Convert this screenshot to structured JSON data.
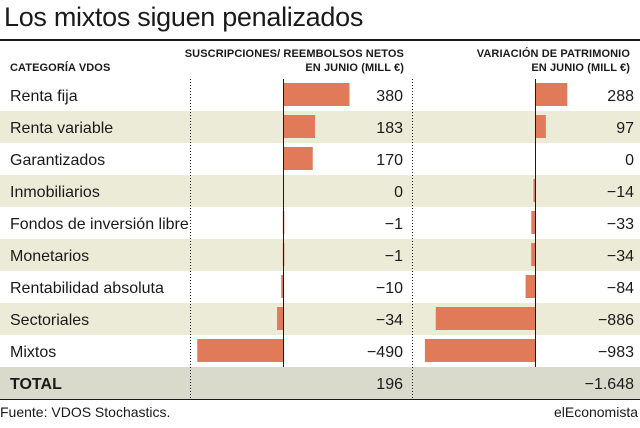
{
  "title": "Los mixtos siguen penalizados",
  "headers": {
    "category": "CATEGORÍA VDOS",
    "flows_line1": "SUSCRIPCIONES/ REEMBOLSOS NETOS",
    "flows_line2": "EN JUNIO (MILL €)",
    "assets_line1": "VARIACIÓN DE PATRIMONIO",
    "assets_line2": "EN JUNIO (MILL €)"
  },
  "colors": {
    "bar": "#e17a58",
    "stripe": "#ecebd8",
    "total_row": "#d9d9cc",
    "text": "#1a1a1a"
  },
  "chart_data": {
    "type": "bar",
    "orientation": "horizontal",
    "categories": [
      "Renta fija",
      "Renta variable",
      "Garantizados",
      "Inmobiliarios",
      "Fondos de inversión libre",
      "Monetarios",
      "Rentabilidad absoluta",
      "Sectoriales",
      "Mixtos"
    ],
    "series": [
      {
        "name": "Suscripciones/ reembolsos netos en junio (mill €)",
        "values": [
          380,
          183,
          170,
          0,
          -1,
          -1,
          -10,
          -34,
          -490
        ],
        "labels": [
          "380",
          "183",
          "170",
          "0",
          "−1",
          "−1",
          "−10",
          "−34",
          "−490"
        ]
      },
      {
        "name": "Variación de patrimonio en junio (mill €)",
        "values": [
          288,
          97,
          0,
          -14,
          -33,
          -34,
          -84,
          -886,
          -983
        ],
        "labels": [
          "288",
          "97",
          "0",
          "−14",
          "−33",
          "−34",
          "−84",
          "−886",
          "−983"
        ]
      }
    ],
    "total": {
      "label": "TOTAL",
      "values": [
        196,
        -1648
      ],
      "labels": [
        "196",
        "−1.648"
      ]
    }
  },
  "footer": {
    "source": "Fuente: VDOS Stochastics.",
    "brand": "elEconomista"
  }
}
